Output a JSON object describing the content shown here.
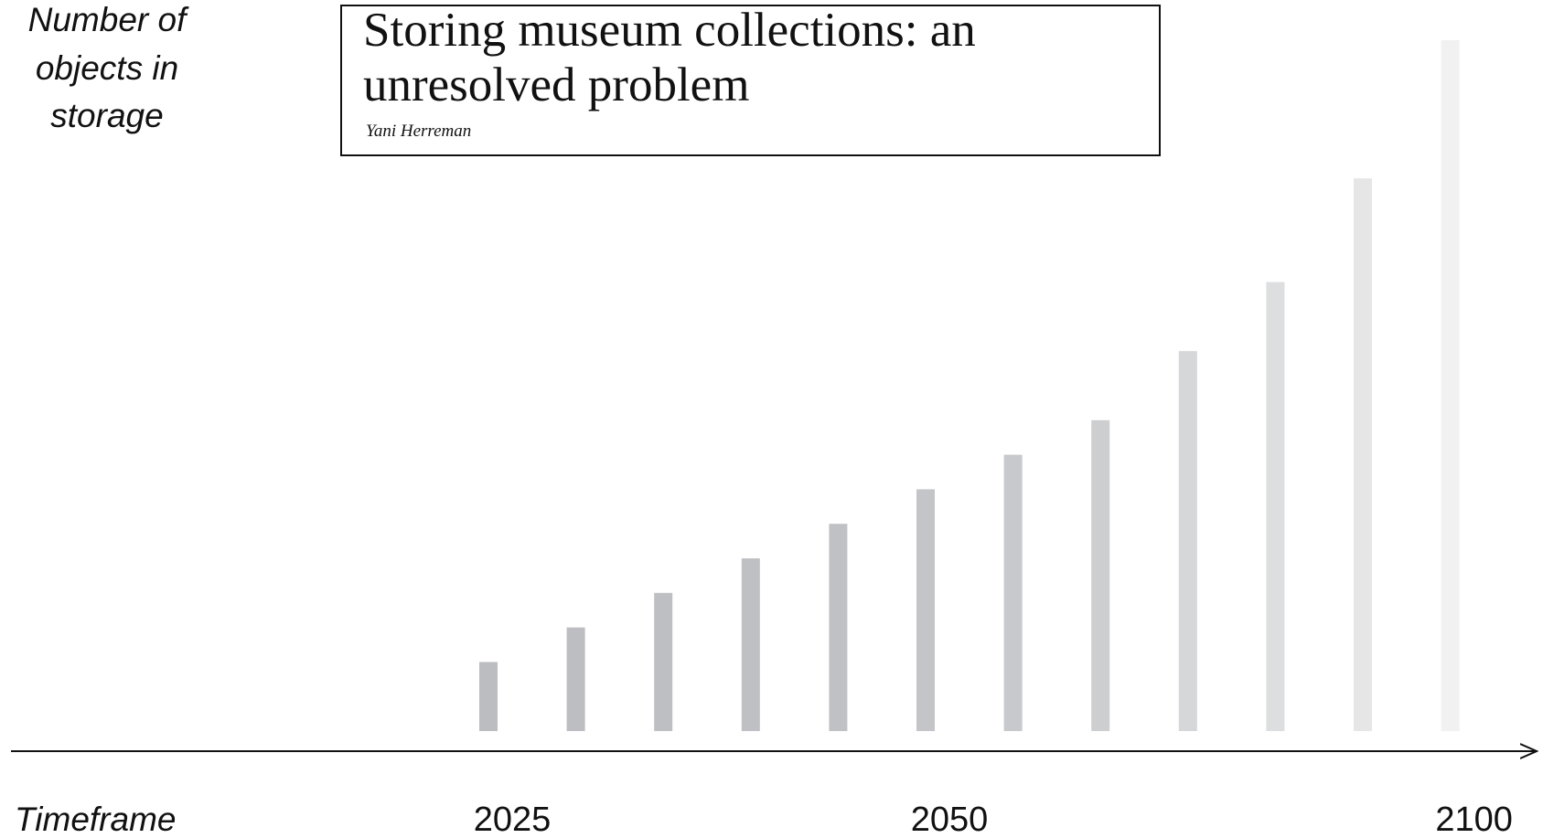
{
  "chart_data": {
    "type": "bar",
    "ylabel_lines": [
      "Number of",
      "objects in",
      "storage"
    ],
    "xlabel": "Timeframe",
    "tick_labels": [
      {
        "category_index": 0,
        "label": "2025"
      },
      {
        "category_index": 5,
        "label": "2050"
      },
      {
        "category_index": 11,
        "label": "2100"
      }
    ],
    "categories": [
      "",
      "",
      "",
      "",
      "",
      "",
      "",
      "",
      "",
      "",
      "",
      ""
    ],
    "values": [
      10,
      15,
      20,
      25,
      30,
      35,
      40,
      45,
      55,
      65,
      80,
      100
    ],
    "ylim": [
      0,
      100
    ],
    "grid": false,
    "legend": "none",
    "bar_colors": [
      "#bcbdc1",
      "#bdbec2",
      "#bebfc3",
      "#bfc0c4",
      "#c0c1c5",
      "#c4c5c8",
      "#c8c9cc",
      "#ccced0",
      "#d6d7d9",
      "#dddee0",
      "#e6e6e7",
      "#f1f1f1"
    ],
    "inset": {
      "title_lines": [
        "Storing museum collections: an",
        "unresolved problem"
      ],
      "author": "Yani Herreman"
    }
  }
}
